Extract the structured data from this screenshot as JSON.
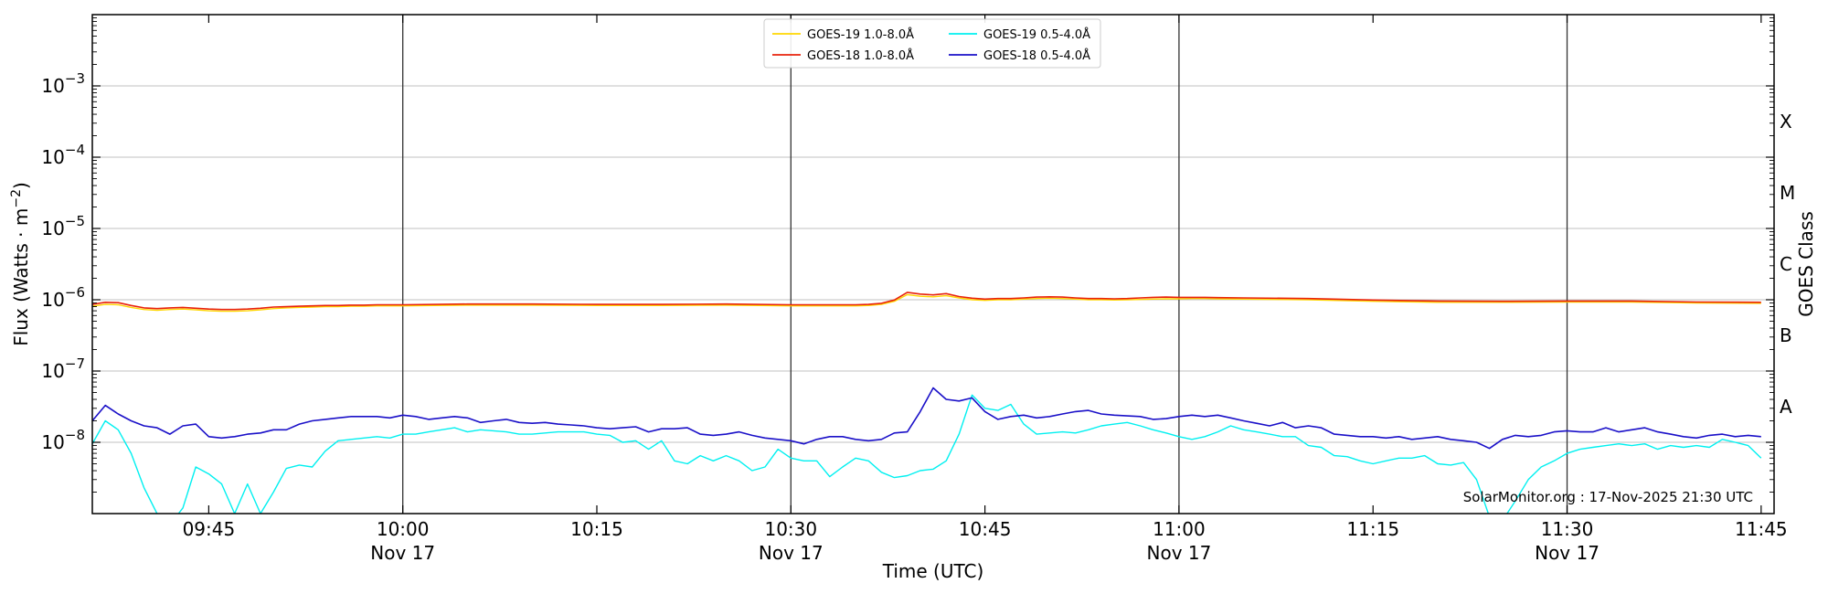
{
  "chart_data": {
    "type": "line",
    "xlabel": "Time (UTC)",
    "ylabel": "Flux (Watts · m",
    "ylabel_sup": "−2",
    "ylabel_close": ")",
    "right_label": "GOES Class",
    "credit": "SolarMonitor.org : 17-Nov-2025 21:30 UTC",
    "y_scale": "log",
    "ylim_exp": [
      -9,
      -2
    ],
    "xlim_min": [
      576,
      706
    ],
    "y_ticks": [
      {
        "exp": -8,
        "base": "10",
        "sup": "−8"
      },
      {
        "exp": -7,
        "base": "10",
        "sup": "−7"
      },
      {
        "exp": -6,
        "base": "10",
        "sup": "−6"
      },
      {
        "exp": -5,
        "base": "10",
        "sup": "−5"
      },
      {
        "exp": -4,
        "base": "10",
        "sup": "−4"
      },
      {
        "exp": -3,
        "base": "10",
        "sup": "−3"
      }
    ],
    "x_ticks": [
      {
        "t": 585,
        "label": "09:45",
        "sub": ""
      },
      {
        "t": 600,
        "label": "10:00",
        "sub": "Nov 17"
      },
      {
        "t": 615,
        "label": "10:15",
        "sub": ""
      },
      {
        "t": 630,
        "label": "10:30",
        "sub": "Nov 17"
      },
      {
        "t": 645,
        "label": "10:45",
        "sub": ""
      },
      {
        "t": 660,
        "label": "11:00",
        "sub": "Nov 17"
      },
      {
        "t": 675,
        "label": "11:15",
        "sub": ""
      },
      {
        "t": 690,
        "label": "11:30",
        "sub": "Nov 17"
      },
      {
        "t": 705,
        "label": "11:45",
        "sub": ""
      }
    ],
    "goes_classes": [
      {
        "label": "A",
        "exp": -7.5
      },
      {
        "label": "B",
        "exp": -6.5
      },
      {
        "label": "C",
        "exp": -5.5
      },
      {
        "label": "M",
        "exp": -4.5
      },
      {
        "label": "X",
        "exp": -3.5
      }
    ],
    "legend": {
      "position": "top-center"
    },
    "series": [
      {
        "name": "GOES-19 1.0-8.0Å",
        "color": "#ffd700",
        "width": 1.4,
        "t": [
          576,
          577,
          578,
          579,
          580,
          581,
          582,
          583,
          584,
          585,
          586,
          587,
          588,
          589,
          590,
          591,
          592,
          593,
          594,
          595,
          596,
          597,
          598,
          599,
          600,
          605,
          610,
          615,
          620,
          625,
          630,
          635,
          636,
          637,
          638,
          639,
          640,
          641,
          642,
          643,
          644,
          645,
          646,
          647,
          648,
          649,
          650,
          651,
          652,
          653,
          654,
          655,
          656,
          657,
          658,
          659,
          660,
          661,
          662,
          663,
          665,
          670,
          675,
          680,
          685,
          690,
          695,
          700,
          705
        ],
        "v": [
          8.1e-07,
          8.6e-07,
          8.5e-07,
          7.8e-07,
          7.3e-07,
          7.1e-07,
          7.3e-07,
          7.4e-07,
          7.2e-07,
          7e-07,
          6.9e-07,
          6.9e-07,
          7e-07,
          7.2e-07,
          7.5e-07,
          7.7e-07,
          7.8e-07,
          7.9e-07,
          8e-07,
          8e-07,
          8.1e-07,
          8.1e-07,
          8.2e-07,
          8.2e-07,
          8.2e-07,
          8.4e-07,
          8.4e-07,
          8.3e-07,
          8.3e-07,
          8.4e-07,
          8.2e-07,
          8.2e-07,
          8.3e-07,
          8.6e-07,
          9.5e-07,
          1.18e-06,
          1.12e-06,
          1.1e-06,
          1.14e-06,
          1.06e-06,
          1e-06,
          9.8e-07,
          1e-06,
          1e-06,
          1.02e-06,
          1.04e-06,
          1.05e-06,
          1.04e-06,
          1.02e-06,
          1e-06,
          1e-06,
          9.9e-07,
          1e-06,
          1.01e-06,
          1.02e-06,
          1.03e-06,
          1.03e-06,
          1.04e-06,
          1.04e-06,
          1.03e-06,
          1.02e-06,
          1e-06,
          9.5e-07,
          9.2e-07,
          9.2e-07,
          9.3e-07,
          9.3e-07,
          9e-07,
          8.9e-07
        ]
      },
      {
        "name": "GOES-18 1.0-8.0Å",
        "color": "#e8220c",
        "width": 1.6,
        "t": [
          576,
          577,
          578,
          579,
          580,
          581,
          582,
          583,
          584,
          585,
          586,
          587,
          588,
          589,
          590,
          591,
          592,
          593,
          594,
          595,
          596,
          597,
          598,
          599,
          600,
          605,
          610,
          615,
          620,
          625,
          630,
          635,
          636,
          637,
          638,
          639,
          640,
          641,
          642,
          643,
          644,
          645,
          646,
          647,
          648,
          649,
          650,
          651,
          652,
          653,
          654,
          655,
          656,
          657,
          658,
          659,
          660,
          661,
          662,
          663,
          665,
          670,
          675,
          680,
          685,
          690,
          695,
          700,
          705
        ],
        "v": [
          8.6e-07,
          9.2e-07,
          9.1e-07,
          8.3e-07,
          7.7e-07,
          7.5e-07,
          7.7e-07,
          7.8e-07,
          7.6e-07,
          7.4e-07,
          7.3e-07,
          7.3e-07,
          7.4e-07,
          7.6e-07,
          7.9e-07,
          8e-07,
          8.1e-07,
          8.2e-07,
          8.3e-07,
          8.3e-07,
          8.4e-07,
          8.4e-07,
          8.5e-07,
          8.5e-07,
          8.5e-07,
          8.7e-07,
          8.7e-07,
          8.6e-07,
          8.6e-07,
          8.7e-07,
          8.5e-07,
          8.5e-07,
          8.6e-07,
          8.9e-07,
          9.9e-07,
          1.27e-06,
          1.2e-06,
          1.17e-06,
          1.22e-06,
          1.11e-06,
          1.05e-06,
          1.02e-06,
          1.04e-06,
          1.04e-06,
          1.06e-06,
          1.09e-06,
          1.1e-06,
          1.09e-06,
          1.06e-06,
          1.04e-06,
          1.04e-06,
          1.03e-06,
          1.04e-06,
          1.06e-06,
          1.08e-06,
          1.09e-06,
          1.08e-06,
          1.08e-06,
          1.08e-06,
          1.07e-06,
          1.06e-06,
          1.04e-06,
          9.9e-07,
          9.6e-07,
          9.5e-07,
          9.6e-07,
          9.6e-07,
          9.3e-07,
          9.2e-07
        ]
      },
      {
        "name": "GOES-19 0.5-4.0Å",
        "color": "#00f0f0",
        "width": 1.4,
        "t": [
          576,
          577,
          578,
          579,
          580,
          581,
          582,
          583,
          584,
          585,
          586,
          587,
          588,
          589,
          590,
          591,
          592,
          593,
          594,
          595,
          596,
          597,
          598,
          599,
          600,
          601,
          602,
          603,
          604,
          605,
          606,
          607,
          608,
          609,
          610,
          611,
          612,
          613,
          614,
          615,
          616,
          617,
          618,
          619,
          620,
          621,
          622,
          623,
          624,
          625,
          626,
          627,
          628,
          629,
          630,
          631,
          632,
          633,
          634,
          635,
          636,
          637,
          638,
          639,
          640,
          641,
          642,
          643,
          644,
          645,
          646,
          647,
          648,
          649,
          650,
          651,
          652,
          653,
          654,
          655,
          656,
          657,
          658,
          659,
          660,
          661,
          662,
          663,
          664,
          665,
          666,
          667,
          668,
          669,
          670,
          671,
          672,
          673,
          674,
          675,
          676,
          677,
          678,
          679,
          680,
          681,
          682,
          683,
          684,
          685,
          686,
          687,
          688,
          689,
          690,
          691,
          692,
          693,
          694,
          695,
          696,
          697,
          698,
          699,
          700,
          701,
          702,
          703,
          704,
          705
        ],
        "v": [
          9.5e-09,
          2e-08,
          1.5e-08,
          7e-09,
          2.3e-09,
          1e-09,
          7e-10,
          1.2e-09,
          4.5e-09,
          3.6e-09,
          2.6e-09,
          1e-09,
          2.6e-09,
          1e-09,
          2e-09,
          4.3e-09,
          4.8e-09,
          4.5e-09,
          7.5e-09,
          1.05e-08,
          1.1e-08,
          1.15e-08,
          1.2e-08,
          1.15e-08,
          1.3e-08,
          1.3e-08,
          1.4e-08,
          1.5e-08,
          1.6e-08,
          1.4e-08,
          1.5e-08,
          1.45e-08,
          1.4e-08,
          1.3e-08,
          1.3e-08,
          1.35e-08,
          1.4e-08,
          1.4e-08,
          1.4e-08,
          1.3e-08,
          1.25e-08,
          1e-08,
          1.05e-08,
          8e-09,
          1.05e-08,
          5.5e-09,
          5e-09,
          6.5e-09,
          5.5e-09,
          6.5e-09,
          5.5e-09,
          4e-09,
          4.5e-09,
          8e-09,
          6e-09,
          5.5e-09,
          5.5e-09,
          3.3e-09,
          4.5e-09,
          6e-09,
          5.5e-09,
          3.8e-09,
          3.2e-09,
          3.4e-09,
          4e-09,
          4.2e-09,
          5.5e-09,
          1.3e-08,
          4.6e-08,
          3e-08,
          2.8e-08,
          3.4e-08,
          1.8e-08,
          1.3e-08,
          1.35e-08,
          1.4e-08,
          1.35e-08,
          1.5e-08,
          1.7e-08,
          1.8e-08,
          1.9e-08,
          1.7e-08,
          1.5e-08,
          1.35e-08,
          1.2e-08,
          1.1e-08,
          1.2e-08,
          1.4e-08,
          1.7e-08,
          1.5e-08,
          1.4e-08,
          1.3e-08,
          1.2e-08,
          1.2e-08,
          9e-09,
          8.5e-09,
          6.5e-09,
          6.3e-09,
          5.5e-09,
          5e-09,
          5.5e-09,
          6e-09,
          6e-09,
          6.5e-09,
          5e-09,
          4.8e-09,
          5.2e-09,
          3e-09,
          9e-10,
          8e-10,
          1.5e-09,
          3e-09,
          4.5e-09,
          5.5e-09,
          7e-09,
          8e-09,
          8.5e-09,
          9e-09,
          9.5e-09,
          9e-09,
          9.5e-09,
          8e-09,
          9e-09,
          8.5e-09,
          9e-09,
          8.5e-09,
          1.1e-08,
          1e-08,
          9e-09,
          6e-09,
          6.5e-09,
          6e-09
        ]
      },
      {
        "name": "GOES-18 0.5-4.0Å",
        "color": "#1a10c8",
        "width": 1.6,
        "t": [
          576,
          577,
          578,
          579,
          580,
          581,
          582,
          583,
          584,
          585,
          586,
          587,
          588,
          589,
          590,
          591,
          592,
          593,
          594,
          595,
          596,
          597,
          598,
          599,
          600,
          601,
          602,
          603,
          604,
          605,
          606,
          607,
          608,
          609,
          610,
          611,
          612,
          613,
          614,
          615,
          616,
          617,
          618,
          619,
          620,
          621,
          622,
          623,
          624,
          625,
          626,
          627,
          628,
          629,
          630,
          631,
          632,
          633,
          634,
          635,
          636,
          637,
          638,
          639,
          640,
          641,
          642,
          643,
          644,
          645,
          646,
          647,
          648,
          649,
          650,
          651,
          652,
          653,
          654,
          655,
          656,
          657,
          658,
          659,
          660,
          661,
          662,
          663,
          664,
          665,
          666,
          667,
          668,
          669,
          670,
          671,
          672,
          673,
          674,
          675,
          676,
          677,
          678,
          679,
          680,
          681,
          682,
          683,
          684,
          685,
          686,
          687,
          688,
          689,
          690,
          691,
          692,
          693,
          694,
          695,
          696,
          697,
          698,
          699,
          700,
          701,
          702,
          703,
          704,
          705
        ],
        "v": [
          2e-08,
          3.3e-08,
          2.5e-08,
          2e-08,
          1.7e-08,
          1.6e-08,
          1.3e-08,
          1.7e-08,
          1.8e-08,
          1.2e-08,
          1.15e-08,
          1.2e-08,
          1.3e-08,
          1.35e-08,
          1.5e-08,
          1.5e-08,
          1.8e-08,
          2e-08,
          2.1e-08,
          2.2e-08,
          2.3e-08,
          2.3e-08,
          2.3e-08,
          2.2e-08,
          2.4e-08,
          2.3e-08,
          2.1e-08,
          2.2e-08,
          2.3e-08,
          2.2e-08,
          1.9e-08,
          2e-08,
          2.1e-08,
          1.9e-08,
          1.85e-08,
          1.9e-08,
          1.8e-08,
          1.75e-08,
          1.7e-08,
          1.6e-08,
          1.55e-08,
          1.6e-08,
          1.65e-08,
          1.4e-08,
          1.55e-08,
          1.55e-08,
          1.6e-08,
          1.3e-08,
          1.25e-08,
          1.3e-08,
          1.4e-08,
          1.25e-08,
          1.15e-08,
          1.1e-08,
          1.05e-08,
          9.5e-09,
          1.1e-08,
          1.2e-08,
          1.2e-08,
          1.1e-08,
          1.05e-08,
          1.1e-08,
          1.35e-08,
          1.4e-08,
          2.7e-08,
          5.8e-08,
          4e-08,
          3.8e-08,
          4.2e-08,
          2.7e-08,
          2.1e-08,
          2.3e-08,
          2.4e-08,
          2.2e-08,
          2.3e-08,
          2.5e-08,
          2.7e-08,
          2.8e-08,
          2.5e-08,
          2.4e-08,
          2.35e-08,
          2.3e-08,
          2.1e-08,
          2.15e-08,
          2.3e-08,
          2.4e-08,
          2.3e-08,
          2.4e-08,
          2.2e-08,
          2e-08,
          1.85e-08,
          1.7e-08,
          1.9e-08,
          1.6e-08,
          1.7e-08,
          1.6e-08,
          1.3e-08,
          1.25e-08,
          1.2e-08,
          1.2e-08,
          1.15e-08,
          1.2e-08,
          1.1e-08,
          1.15e-08,
          1.2e-08,
          1.1e-08,
          1.05e-08,
          1e-08,
          8.2e-09,
          1.1e-08,
          1.25e-08,
          1.2e-08,
          1.25e-08,
          1.4e-08,
          1.45e-08,
          1.4e-08,
          1.4e-08,
          1.6e-08,
          1.4e-08,
          1.5e-08,
          1.6e-08,
          1.4e-08,
          1.3e-08,
          1.2e-08,
          1.15e-08,
          1.25e-08,
          1.3e-08,
          1.2e-08,
          1.25e-08,
          1.2e-08,
          1.25e-08,
          1.4e-08
        ]
      }
    ]
  }
}
